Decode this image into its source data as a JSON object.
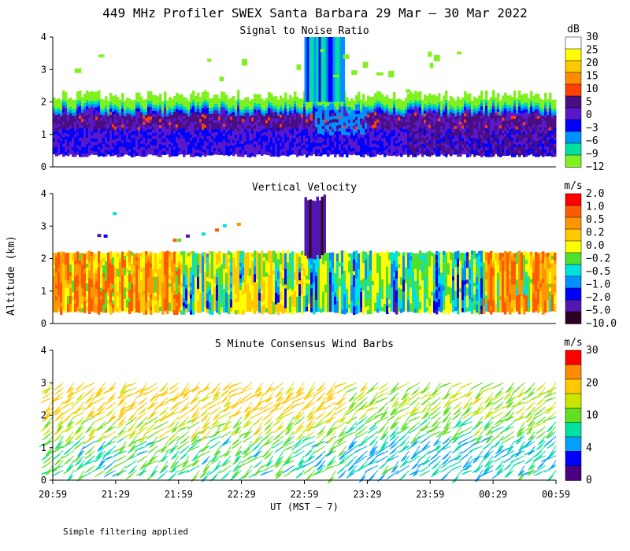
{
  "title": "449 MHz Profiler SWEX Santa Barbara 29 Mar – 30 Mar 2022",
  "footer_note": "Simple filtering applied",
  "ylabel": "Altitude (km)",
  "xlabel": "UT  (MST – 7)",
  "x_ticks": [
    "20:59",
    "21:29",
    "21:59",
    "22:29",
    "22:59",
    "23:29",
    "23:59",
    "00:29",
    "00:59"
  ],
  "y_ticks": [
    "0",
    "1",
    "2",
    "3",
    "4"
  ],
  "chart_data": [
    {
      "type": "heatmap",
      "title": "Signal to Noise Ratio",
      "unit": "dB",
      "ylim": [
        0,
        4
      ],
      "x_range": [
        "20:59",
        "00:59"
      ],
      "colorbar": {
        "ticks": [
          "30",
          "25",
          "20",
          "15",
          "10",
          "5",
          "0",
          "−3",
          "−6",
          "−9",
          "−12"
        ],
        "colors": [
          "#ffffff",
          "#ffff00",
          "#ffc800",
          "#ff8c00",
          "#ff4000",
          "#4a0d82",
          "#5a18c8",
          "#0000ff",
          "#0090ff",
          "#00e0a0",
          "#80f020"
        ]
      },
      "observations": {
        "data_top_km": 2.1,
        "data_bottom_km": 0.4,
        "high_snr_layer_km": [
          1.2,
          1.7
        ],
        "tall_band_start": "22:59",
        "tall_band_end": "23:18",
        "tall_band_top_km": 4.0
      }
    },
    {
      "type": "heatmap",
      "title": "Vertical Velocity",
      "unit": "m/s",
      "ylim": [
        0,
        4
      ],
      "x_range": [
        "20:59",
        "00:59"
      ],
      "colorbar": {
        "ticks": [
          "2.0",
          "1.0",
          "0.5",
          "0.2",
          "0.0",
          "−0.2",
          "−0.5",
          "−1.0",
          "−2.0",
          "−5.0",
          "−10.0"
        ],
        "colors": [
          "#ff0000",
          "#ff5a00",
          "#ff9600",
          "#ffc800",
          "#ffff00",
          "#50e030",
          "#00e0e0",
          "#0090ff",
          "#0000ff",
          "#5018b0",
          "#300020"
        ]
      },
      "observations": {
        "data_top_km": 2.2,
        "data_bottom_km": 0.4,
        "downdraft_start": "22:59",
        "downdraft_end": "23:09",
        "downdraft_top_km": 4.0
      }
    },
    {
      "type": "scatter",
      "title": "5 Minute Consensus Wind Barbs",
      "unit": "m/s",
      "ylim": [
        0,
        4
      ],
      "x_range": [
        "20:59",
        "00:59"
      ],
      "colorbar": {
        "ticks": [
          "30",
          "20",
          "10",
          "4",
          "0"
        ],
        "colors": [
          "#ff0000",
          "#ff8c00",
          "#ffc800",
          "#c8e600",
          "#60e020",
          "#00e0a0",
          "#00a0ff",
          "#0000ff",
          "#4a0080"
        ]
      },
      "observations": {
        "upper_barb_speed_ms": 20,
        "lower_barb_speed_ms": 5,
        "barb_interval_minutes": 5
      }
    }
  ]
}
